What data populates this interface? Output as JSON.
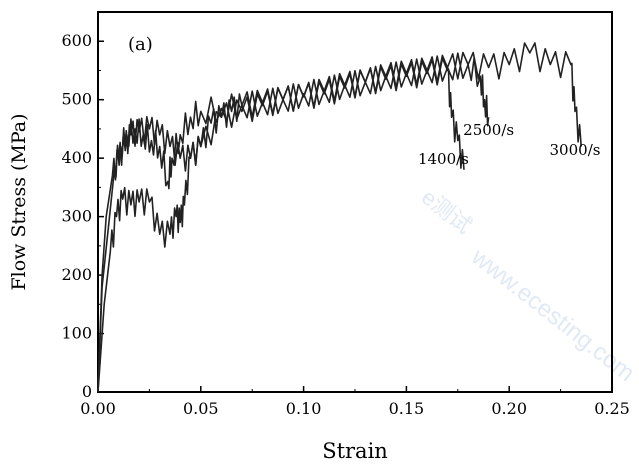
{
  "chart_data": {
    "type": "line",
    "panel_label": "(a)",
    "xlabel": "Strain",
    "ylabel": "Flow Stress (MPa)",
    "xlim": [
      0,
      0.25
    ],
    "ylim": [
      0,
      650
    ],
    "x_ticks": [
      "0.00",
      "0.05",
      "0.10",
      "0.15",
      "0.20",
      "0.25"
    ],
    "y_ticks": [
      "0",
      "100",
      "200",
      "300",
      "400",
      "500",
      "600"
    ],
    "grid": false,
    "legend": "none",
    "line_color": "#222222",
    "series": [
      {
        "name": "1400/s",
        "label_at": [
          0.168,
          390
        ],
        "x": [
          0.0,
          0.003,
          0.006,
          0.009,
          0.012,
          0.016,
          0.02,
          0.025,
          0.03,
          0.035,
          0.038,
          0.04,
          0.042,
          0.045,
          0.05,
          0.055,
          0.06,
          0.065,
          0.07,
          0.08,
          0.09,
          0.1,
          0.11,
          0.12,
          0.13,
          0.14,
          0.15,
          0.16,
          0.17,
          0.172,
          0.175,
          0.178
        ],
        "y": [
          0,
          150,
          240,
          300,
          330,
          320,
          325,
          325,
          270,
          270,
          300,
          290,
          320,
          400,
          420,
          460,
          470,
          480,
          490,
          495,
          500,
          505,
          510,
          520,
          530,
          535,
          540,
          545,
          550,
          470,
          430,
          380
        ]
      },
      {
        "name": "2500/s",
        "label_at": [
          0.19,
          440
        ],
        "x": [
          0.0,
          0.002,
          0.005,
          0.008,
          0.011,
          0.014,
          0.018,
          0.022,
          0.026,
          0.03,
          0.034,
          0.036,
          0.04,
          0.045,
          0.05,
          0.06,
          0.07,
          0.08,
          0.09,
          0.1,
          0.11,
          0.12,
          0.13,
          0.14,
          0.15,
          0.16,
          0.17,
          0.18,
          0.186,
          0.188,
          0.19
        ],
        "y": [
          0,
          180,
          280,
          380,
          420,
          440,
          450,
          440,
          430,
          420,
          360,
          400,
          440,
          470,
          480,
          485,
          490,
          495,
          500,
          510,
          515,
          525,
          530,
          540,
          545,
          550,
          555,
          560,
          540,
          500,
          470
        ]
      },
      {
        "name": "3000/s",
        "label_at": [
          0.232,
          405
        ],
        "x": [
          0.0,
          0.002,
          0.004,
          0.007,
          0.01,
          0.013,
          0.016,
          0.02,
          0.025,
          0.03,
          0.035,
          0.04,
          0.045,
          0.05,
          0.06,
          0.07,
          0.08,
          0.09,
          0.1,
          0.11,
          0.12,
          0.13,
          0.14,
          0.15,
          0.16,
          0.17,
          0.18,
          0.19,
          0.2,
          0.21,
          0.22,
          0.23,
          0.232,
          0.235
        ],
        "y": [
          0,
          200,
          300,
          370,
          400,
          420,
          440,
          445,
          450,
          440,
          420,
          400,
          400,
          420,
          470,
          480,
          490,
          500,
          505,
          515,
          525,
          530,
          540,
          545,
          550,
          555,
          560,
          555,
          560,
          580,
          560,
          560,
          480,
          420
        ]
      }
    ],
    "watermark": "e测试 www.ecesting.com"
  }
}
